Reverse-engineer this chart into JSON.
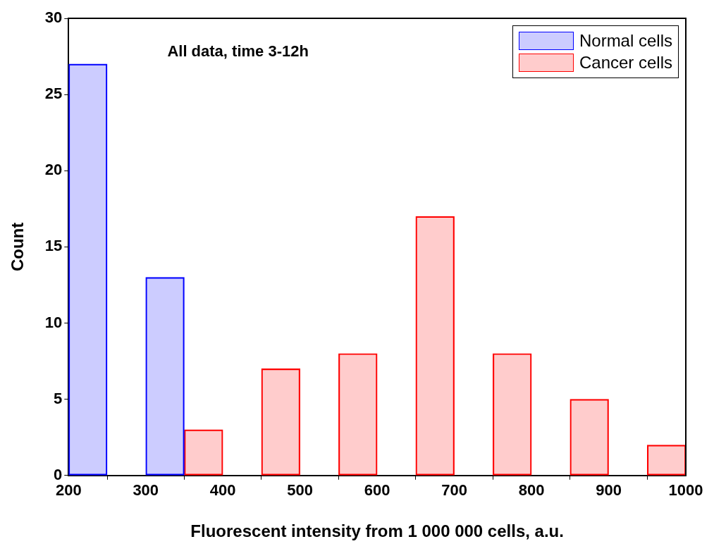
{
  "chart_data": {
    "type": "bar",
    "title": "All data, time 3-12h",
    "xlabel": "Fluorescent intensity from 1 000 000 cells, a.u.",
    "ylabel": "Count",
    "series": [
      {
        "name": "Normal cells",
        "color": "#0000ff",
        "x": [
          225,
          325
        ],
        "values": [
          27,
          13
        ]
      },
      {
        "name": "Cancer cells",
        "color": "#ff0000",
        "x": [
          375,
          475,
          575,
          675,
          775,
          875,
          975
        ],
        "values": [
          3,
          7,
          8,
          17,
          8,
          5,
          2
        ]
      }
    ],
    "xlim": [
      200,
      1000
    ],
    "xticks": [
      200,
      300,
      400,
      500,
      600,
      700,
      800,
      900,
      1000
    ],
    "ylim": [
      0,
      30
    ],
    "yticks": [
      0,
      5,
      10,
      15,
      20,
      25,
      30
    ],
    "grid": false,
    "legend": "top right"
  }
}
